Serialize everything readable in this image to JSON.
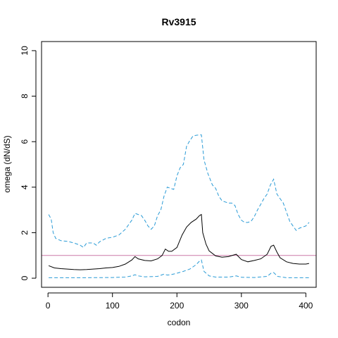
{
  "chart_data": {
    "type": "line",
    "title": "Rv3915",
    "xlabel": "codon",
    "ylabel": "omega (dN/dS)",
    "xlim": [
      -10,
      416
    ],
    "ylim": [
      -0.4,
      10.4
    ],
    "xticks": [
      0,
      100,
      200,
      300,
      400
    ],
    "yticks": [
      0,
      2,
      4,
      6,
      8,
      10
    ],
    "grid": false,
    "reference_line": {
      "y": 1,
      "color": "#cc79a7"
    },
    "series": [
      {
        "style": "solid",
        "color": "#000000",
        "points": [
          [
            1,
            0.55
          ],
          [
            10,
            0.45
          ],
          [
            20,
            0.42
          ],
          [
            30,
            0.4
          ],
          [
            40,
            0.38
          ],
          [
            50,
            0.37
          ],
          [
            60,
            0.38
          ],
          [
            70,
            0.4
          ],
          [
            80,
            0.42
          ],
          [
            90,
            0.45
          ],
          [
            100,
            0.47
          ],
          [
            110,
            0.52
          ],
          [
            120,
            0.62
          ],
          [
            130,
            0.8
          ],
          [
            135,
            0.95
          ],
          [
            140,
            0.85
          ],
          [
            150,
            0.78
          ],
          [
            160,
            0.76
          ],
          [
            170,
            0.85
          ],
          [
            177,
            1.0
          ],
          [
            182,
            1.28
          ],
          [
            187,
            1.18
          ],
          [
            192,
            1.18
          ],
          [
            200,
            1.35
          ],
          [
            208,
            1.9
          ],
          [
            215,
            2.25
          ],
          [
            222,
            2.45
          ],
          [
            230,
            2.6
          ],
          [
            235,
            2.75
          ],
          [
            238,
            2.8
          ],
          [
            240,
            2.0
          ],
          [
            245,
            1.5
          ],
          [
            250,
            1.2
          ],
          [
            260,
            0.98
          ],
          [
            270,
            0.92
          ],
          [
            280,
            0.95
          ],
          [
            288,
            1.02
          ],
          [
            292,
            1.05
          ],
          [
            300,
            0.82
          ],
          [
            310,
            0.72
          ],
          [
            320,
            0.78
          ],
          [
            330,
            0.85
          ],
          [
            340,
            1.05
          ],
          [
            346,
            1.4
          ],
          [
            350,
            1.45
          ],
          [
            355,
            1.15
          ],
          [
            360,
            0.9
          ],
          [
            370,
            0.72
          ],
          [
            380,
            0.65
          ],
          [
            390,
            0.62
          ],
          [
            400,
            0.62
          ],
          [
            405,
            0.65
          ]
        ]
      },
      {
        "style": "dashed",
        "color": "#2a9bd6",
        "points": [
          [
            1,
            2.8
          ],
          [
            5,
            2.6
          ],
          [
            8,
            2.0
          ],
          [
            12,
            1.75
          ],
          [
            20,
            1.65
          ],
          [
            30,
            1.62
          ],
          [
            40,
            1.55
          ],
          [
            50,
            1.45
          ],
          [
            55,
            1.35
          ],
          [
            60,
            1.55
          ],
          [
            70,
            1.55
          ],
          [
            75,
            1.45
          ],
          [
            80,
            1.6
          ],
          [
            90,
            1.75
          ],
          [
            100,
            1.8
          ],
          [
            110,
            1.9
          ],
          [
            120,
            2.15
          ],
          [
            130,
            2.55
          ],
          [
            135,
            2.85
          ],
          [
            140,
            2.8
          ],
          [
            145,
            2.75
          ],
          [
            150,
            2.55
          ],
          [
            155,
            2.3
          ],
          [
            160,
            2.15
          ],
          [
            165,
            2.3
          ],
          [
            170,
            2.75
          ],
          [
            175,
            3.0
          ],
          [
            180,
            3.6
          ],
          [
            185,
            4.0
          ],
          [
            190,
            3.95
          ],
          [
            195,
            3.9
          ],
          [
            200,
            4.5
          ],
          [
            205,
            4.85
          ],
          [
            210,
            5.0
          ],
          [
            215,
            5.8
          ],
          [
            220,
            6.05
          ],
          [
            225,
            6.25
          ],
          [
            230,
            6.28
          ],
          [
            235,
            6.3
          ],
          [
            238,
            6.3
          ],
          [
            242,
            5.2
          ],
          [
            248,
            4.6
          ],
          [
            255,
            4.1
          ],
          [
            260,
            3.95
          ],
          [
            265,
            3.6
          ],
          [
            270,
            3.4
          ],
          [
            275,
            3.35
          ],
          [
            280,
            3.3
          ],
          [
            285,
            3.3
          ],
          [
            290,
            3.2
          ],
          [
            295,
            2.8
          ],
          [
            300,
            2.55
          ],
          [
            305,
            2.45
          ],
          [
            310,
            2.45
          ],
          [
            315,
            2.5
          ],
          [
            320,
            2.7
          ],
          [
            325,
            3.0
          ],
          [
            330,
            3.25
          ],
          [
            335,
            3.5
          ],
          [
            340,
            3.7
          ],
          [
            345,
            4.1
          ],
          [
            350,
            4.35
          ],
          [
            355,
            3.7
          ],
          [
            360,
            3.5
          ],
          [
            365,
            3.3
          ],
          [
            370,
            2.9
          ],
          [
            375,
            2.5
          ],
          [
            380,
            2.3
          ],
          [
            385,
            2.1
          ],
          [
            390,
            2.2
          ],
          [
            395,
            2.25
          ],
          [
            400,
            2.3
          ],
          [
            405,
            2.45
          ]
        ]
      },
      {
        "style": "dashed",
        "color": "#2a9bd6",
        "points": [
          [
            1,
            0.02
          ],
          [
            50,
            0.02
          ],
          [
            100,
            0.03
          ],
          [
            120,
            0.05
          ],
          [
            130,
            0.1
          ],
          [
            135,
            0.15
          ],
          [
            140,
            0.1
          ],
          [
            150,
            0.06
          ],
          [
            170,
            0.08
          ],
          [
            180,
            0.18
          ],
          [
            185,
            0.14
          ],
          [
            190,
            0.15
          ],
          [
            200,
            0.22
          ],
          [
            210,
            0.3
          ],
          [
            220,
            0.4
          ],
          [
            230,
            0.6
          ],
          [
            235,
            0.75
          ],
          [
            238,
            0.8
          ],
          [
            242,
            0.3
          ],
          [
            250,
            0.1
          ],
          [
            260,
            0.05
          ],
          [
            280,
            0.05
          ],
          [
            292,
            0.1
          ],
          [
            300,
            0.04
          ],
          [
            320,
            0.03
          ],
          [
            340,
            0.08
          ],
          [
            346,
            0.22
          ],
          [
            350,
            0.25
          ],
          [
            356,
            0.08
          ],
          [
            370,
            0.02
          ],
          [
            400,
            0.02
          ],
          [
            405,
            0.02
          ]
        ]
      }
    ]
  }
}
